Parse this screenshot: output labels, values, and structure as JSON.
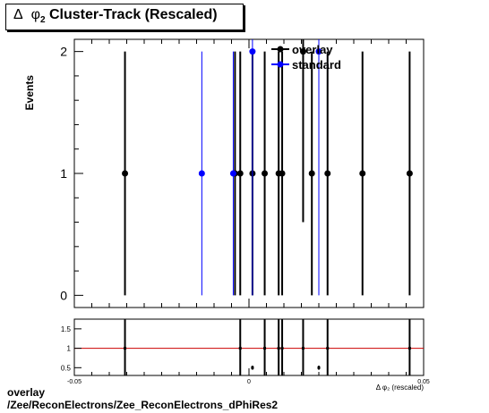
{
  "title_parts": {
    "delta": "Δ",
    "phi": "φ",
    "sub": "2",
    "rest": "Cluster-Track (Rescaled)"
  },
  "footer": {
    "line1": "overlay",
    "line2": "/Zee/ReconElectrons/Zee_ReconElectrons_dPhiRes2"
  },
  "chart_data": [
    {
      "type": "scatter",
      "panel": "main",
      "ylabel": "Events",
      "xlim": [
        -0.05,
        0.05
      ],
      "ylim": [
        -0.1,
        2.1
      ],
      "yticks": [
        "0",
        "1",
        "2"
      ],
      "legend": {
        "position": "top-right",
        "entries": [
          "overlay",
          "standard"
        ]
      },
      "series": [
        {
          "name": "overlay",
          "color": "#000000",
          "points": [
            {
              "x": -0.0355,
              "y": 1,
              "lo": 0,
              "hi": 2
            },
            {
              "x": -0.004,
              "y": 1,
              "lo": 0,
              "hi": 2
            },
            {
              "x": -0.0025,
              "y": 1,
              "lo": 0,
              "hi": 2
            },
            {
              "x": 0.001,
              "y": 1,
              "lo": 0,
              "hi": 2
            },
            {
              "x": 0.0045,
              "y": 1,
              "lo": 0,
              "hi": 2
            },
            {
              "x": 0.0085,
              "y": 1,
              "lo": 0,
              "hi": 2
            },
            {
              "x": 0.0095,
              "y": 1,
              "lo": 0,
              "hi": 2
            },
            {
              "x": 0.0155,
              "y": 2,
              "lo": 0.6,
              "hi": 2.1
            },
            {
              "x": 0.018,
              "y": 1,
              "lo": 0,
              "hi": 2
            },
            {
              "x": 0.0225,
              "y": 1,
              "lo": 0,
              "hi": 2
            },
            {
              "x": 0.0325,
              "y": 1,
              "lo": 0,
              "hi": 2
            },
            {
              "x": 0.046,
              "y": 1,
              "lo": 0,
              "hi": 2
            }
          ]
        },
        {
          "name": "standard",
          "color": "#0000ff",
          "points": [
            {
              "x": -0.0135,
              "y": 1,
              "lo": 0,
              "hi": 2
            },
            {
              "x": -0.0045,
              "y": 1,
              "lo": 0,
              "hi": 2
            },
            {
              "x": 0.001,
              "y": 2,
              "lo": 0,
              "hi": 2.1
            },
            {
              "x": 0.02,
              "y": 2,
              "lo": 0,
              "hi": 2.1
            }
          ]
        }
      ]
    },
    {
      "type": "scatter",
      "panel": "ratio",
      "xlim": [
        -0.05,
        0.05
      ],
      "ylim": [
        0.3,
        1.75
      ],
      "xticks": [
        "-0.05",
        "0",
        "0.05"
      ],
      "yticks": [
        "0.5",
        "1",
        "1.5"
      ],
      "xlabel": "Δ φ₂ (rescaled)",
      "reference_line": {
        "y": 1,
        "color": "#cc0000"
      },
      "points": [
        {
          "x": -0.0355,
          "y": 1,
          "lo": 0.3,
          "hi": 1.75
        },
        {
          "x": -0.0025,
          "y": 1,
          "lo": 0.3,
          "hi": 1.75
        },
        {
          "x": 0.001,
          "y": 0.5,
          "lo": 0.45,
          "hi": 0.55
        },
        {
          "x": 0.0045,
          "y": 1,
          "lo": 0.3,
          "hi": 1.75
        },
        {
          "x": 0.0085,
          "y": 1,
          "lo": 0.3,
          "hi": 1.75
        },
        {
          "x": 0.0095,
          "y": 1,
          "lo": 0.3,
          "hi": 1.75
        },
        {
          "x": 0.0155,
          "y": 1,
          "lo": 0.3,
          "hi": 1.75
        },
        {
          "x": 0.02,
          "y": 0.5,
          "lo": 0.45,
          "hi": 0.55
        },
        {
          "x": 0.0225,
          "y": 1,
          "lo": 0.3,
          "hi": 1.75
        },
        {
          "x": 0.046,
          "y": 1,
          "lo": 0.3,
          "hi": 1.75
        }
      ]
    }
  ]
}
